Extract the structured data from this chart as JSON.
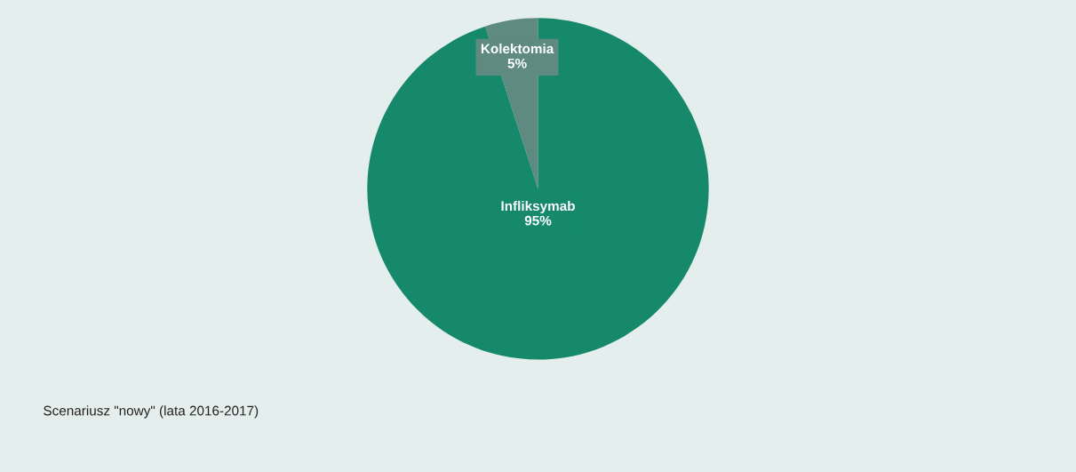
{
  "chart_data": {
    "type": "pie",
    "categories": [
      "Kolektomia",
      "Infliksymab"
    ],
    "values": [
      5,
      95
    ],
    "colors": [
      "#5e8a80",
      "#16896b"
    ],
    "value_labels": [
      "5%",
      "95%"
    ],
    "annotations": [
      "Scenariusz \"nowy\" (lata 2016-2017)"
    ]
  }
}
